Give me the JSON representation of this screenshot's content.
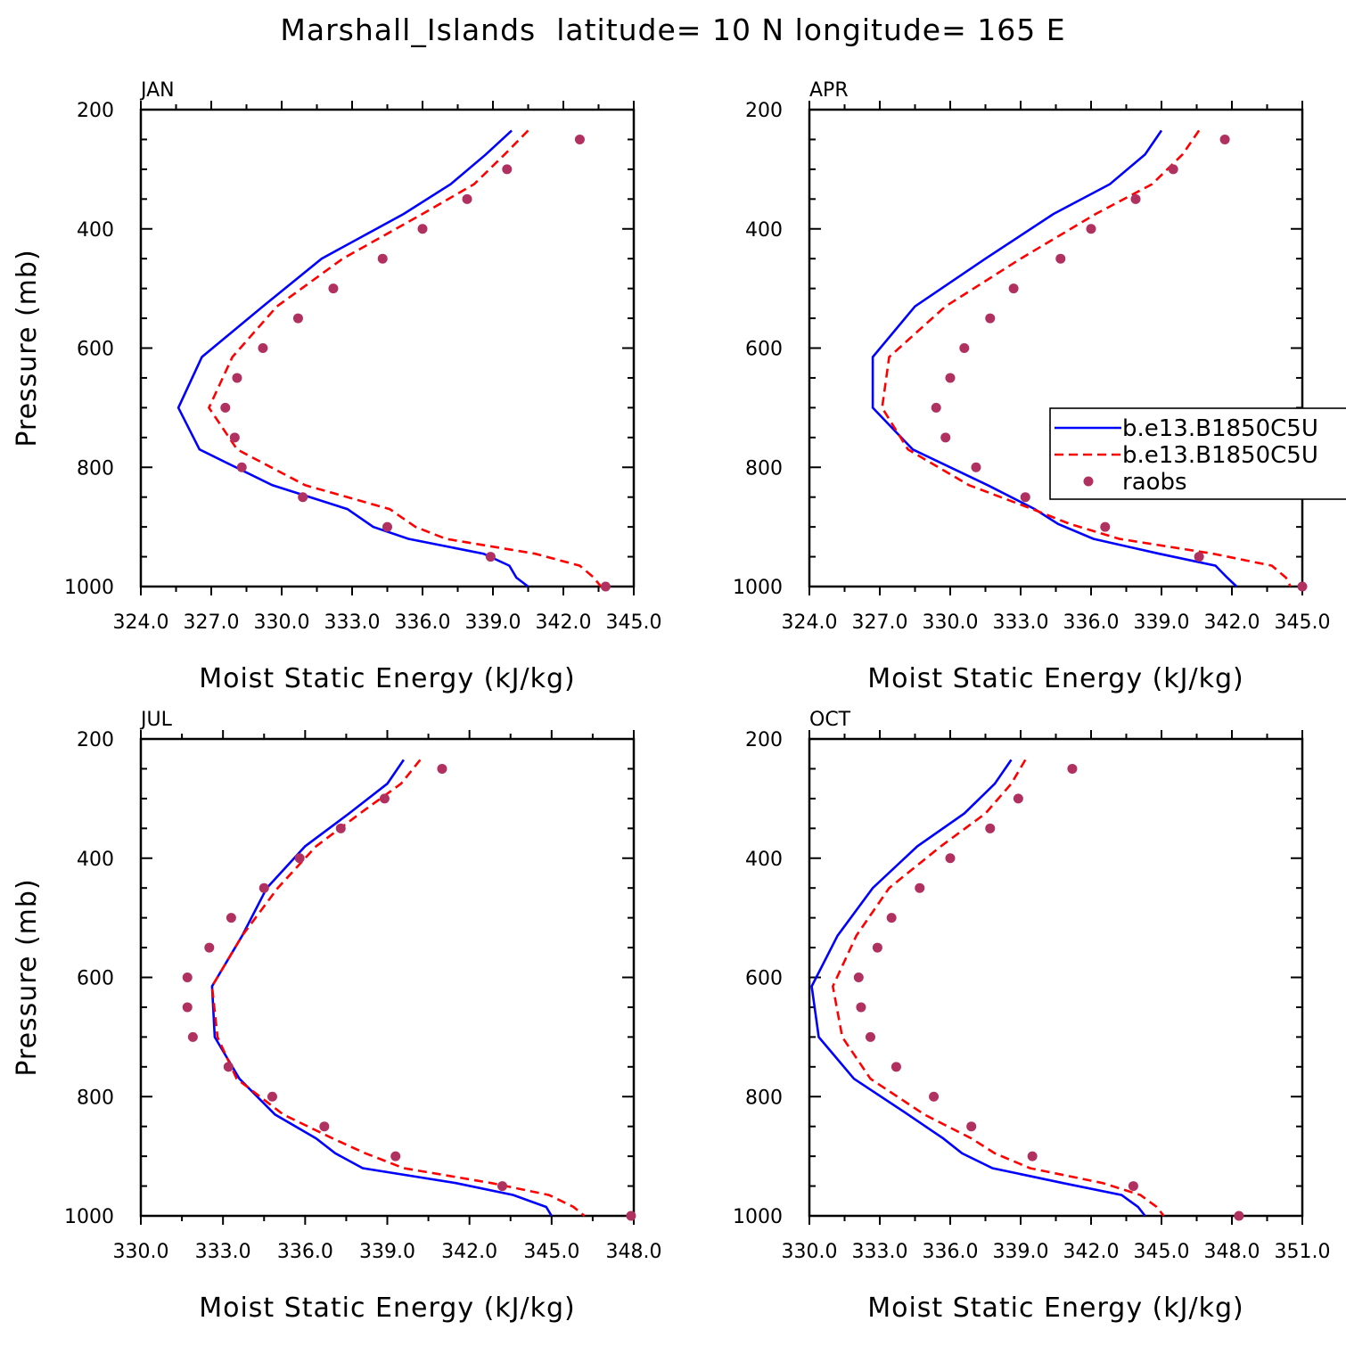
{
  "figure_title": "Marshall_Islands  latitude= 10 N longitude= 165 E",
  "colors": {
    "model1": "#0000ff",
    "model2": "#ff0000",
    "obs": "#b03060",
    "frame": "#000000"
  },
  "chart_data": [
    {
      "type": "line",
      "panel": "JAN",
      "title": "",
      "xlabel": "Moist Static Energy (kJ/kg)",
      "ylabel": "Pressure (mb)",
      "xlim": [
        324.0,
        345.0
      ],
      "xticks": [
        324.0,
        327.0,
        330.0,
        333.0,
        336.0,
        339.0,
        342.0,
        345.0
      ],
      "xtick_labels": [
        "324.0",
        "327.0",
        "330.0",
        "333.0",
        "336.0",
        "339.0",
        "342.0",
        "345.0"
      ],
      "ylim": [
        1000,
        200
      ],
      "yticks": [
        200,
        400,
        600,
        800,
        1000
      ],
      "ytick_labels": [
        "200",
        "400",
        "600",
        "800",
        "1000"
      ],
      "series": [
        {
          "name": "b.e13.B1850C5U",
          "style": "solid",
          "p": [
            235,
            275,
            325,
            375,
            450,
            530,
            615,
            700,
            770,
            830,
            870,
            900,
            920,
            945,
            965,
            985,
            1000
          ],
          "mse": [
            339.8,
            338.7,
            337.2,
            335.2,
            331.7,
            329.2,
            326.6,
            325.6,
            326.5,
            329.6,
            332.8,
            333.9,
            335.4,
            338.6,
            339.7,
            340.0,
            340.5
          ]
        },
        {
          "name": "b.e13.B1850C5U",
          "style": "dashed",
          "p": [
            235,
            275,
            325,
            375,
            450,
            530,
            615,
            700,
            770,
            830,
            870,
            900,
            920,
            945,
            965,
            985,
            1000
          ],
          "mse": [
            340.5,
            339.5,
            338.2,
            336.0,
            332.6,
            329.8,
            327.9,
            326.9,
            328.1,
            331.0,
            334.6,
            335.7,
            337.0,
            340.8,
            342.7,
            343.3,
            343.6
          ]
        }
      ],
      "obs": {
        "name": "raobs",
        "p": [
          250,
          300,
          350,
          400,
          450,
          500,
          550,
          600,
          650,
          700,
          750,
          800,
          850,
          900,
          950,
          1000
        ],
        "mse": [
          342.7,
          339.6,
          337.9,
          336.0,
          334.3,
          332.2,
          330.7,
          329.2,
          328.1,
          327.6,
          328.0,
          328.3,
          330.9,
          334.5,
          338.9,
          343.8
        ]
      }
    },
    {
      "type": "line",
      "panel": "APR",
      "title": "",
      "xlabel": "Moist Static Energy (kJ/kg)",
      "ylabel": "",
      "xlim": [
        324.0,
        345.0
      ],
      "xticks": [
        324.0,
        327.0,
        330.0,
        333.0,
        336.0,
        339.0,
        342.0,
        345.0
      ],
      "xtick_labels": [
        "324.0",
        "327.0",
        "330.0",
        "333.0",
        "336.0",
        "339.0",
        "342.0",
        "345.0"
      ],
      "ylim": [
        1000,
        200
      ],
      "yticks": [
        200,
        400,
        600,
        800,
        1000
      ],
      "ytick_labels": [
        "200",
        "400",
        "600",
        "800",
        "1000"
      ],
      "series": [
        {
          "name": "b.e13.B1850C5U",
          "style": "solid",
          "p": [
            235,
            275,
            325,
            375,
            450,
            530,
            615,
            700,
            770,
            830,
            870,
            895,
            920,
            945,
            965,
            985,
            1000
          ],
          "mse": [
            339.0,
            338.3,
            336.8,
            334.4,
            331.5,
            328.5,
            326.7,
            326.7,
            328.4,
            331.6,
            333.6,
            334.6,
            336.1,
            338.9,
            341.3,
            341.8,
            342.2
          ]
        },
        {
          "name": "b.e13.B1850C5U",
          "style": "dashed",
          "p": [
            235,
            275,
            325,
            375,
            450,
            530,
            615,
            700,
            770,
            830,
            870,
            895,
            920,
            945,
            965,
            985,
            1000
          ],
          "mse": [
            340.6,
            339.9,
            338.6,
            336.2,
            333.0,
            329.8,
            327.4,
            327.1,
            328.2,
            330.8,
            333.5,
            335.1,
            337.2,
            341.2,
            343.7,
            344.3,
            344.5
          ]
        }
      ],
      "obs": {
        "name": "raobs",
        "p": [
          250,
          300,
          350,
          400,
          450,
          500,
          550,
          600,
          650,
          700,
          750,
          800,
          850,
          900,
          950,
          1000
        ],
        "mse": [
          341.7,
          339.5,
          337.9,
          336.0,
          334.7,
          332.7,
          331.7,
          330.6,
          330.0,
          329.4,
          329.8,
          331.1,
          333.2,
          336.6,
          340.6,
          345.0
        ]
      }
    },
    {
      "type": "line",
      "panel": "JUL",
      "title": "",
      "xlabel": "Moist Static Energy (kJ/kg)",
      "ylabel": "Pressure (mb)",
      "xlim": [
        330.0,
        348.0
      ],
      "xticks": [
        330.0,
        333.0,
        336.0,
        339.0,
        342.0,
        345.0,
        348.0
      ],
      "xtick_labels": [
        "330.0",
        "333.0",
        "336.0",
        "339.0",
        "342.0",
        "345.0",
        "348.0"
      ],
      "ylim": [
        1000,
        200
      ],
      "yticks": [
        200,
        400,
        600,
        800,
        1000
      ],
      "ytick_labels": [
        "200",
        "400",
        "600",
        "800",
        "1000"
      ],
      "series": [
        {
          "name": "b.e13.B1850C5U",
          "style": "solid",
          "p": [
            235,
            275,
            325,
            380,
            450,
            530,
            615,
            700,
            770,
            830,
            870,
            895,
            920,
            945,
            965,
            985,
            1000
          ],
          "mse": [
            339.6,
            339.0,
            337.6,
            336.0,
            334.6,
            333.7,
            332.6,
            332.7,
            333.6,
            334.9,
            336.4,
            337.1,
            338.1,
            341.5,
            343.6,
            344.8,
            345.0
          ]
        },
        {
          "name": "b.e13.B1850C5U",
          "style": "dashed",
          "p": [
            235,
            275,
            325,
            380,
            450,
            530,
            615,
            700,
            770,
            830,
            870,
            895,
            920,
            945,
            965,
            985,
            1000
          ],
          "mse": [
            340.2,
            339.5,
            338.0,
            336.4,
            335.0,
            333.7,
            332.6,
            332.8,
            333.5,
            335.2,
            337.0,
            338.2,
            339.6,
            342.8,
            344.9,
            345.8,
            346.2
          ]
        }
      ],
      "obs": {
        "name": "raobs",
        "p": [
          250,
          300,
          350,
          400,
          450,
          500,
          550,
          600,
          650,
          700,
          750,
          800,
          850,
          900,
          950,
          1000
        ],
        "mse": [
          341.0,
          338.9,
          337.3,
          335.8,
          334.5,
          333.3,
          332.5,
          331.7,
          331.7,
          331.9,
          333.2,
          334.8,
          336.7,
          339.3,
          343.2,
          347.9
        ]
      }
    },
    {
      "type": "line",
      "panel": "OCT",
      "title": "",
      "xlabel": "Moist Static Energy (kJ/kg)",
      "ylabel": "",
      "xlim": [
        330.0,
        351.0
      ],
      "xticks": [
        330.0,
        333.0,
        336.0,
        339.0,
        342.0,
        345.0,
        348.0,
        351.0
      ],
      "xtick_labels": [
        "330.0",
        "333.0",
        "336.0",
        "339.0",
        "342.0",
        "345.0",
        "348.0",
        "351.0"
      ],
      "ylim": [
        1000,
        200
      ],
      "yticks": [
        200,
        400,
        600,
        800,
        1000
      ],
      "ytick_labels": [
        "200",
        "400",
        "600",
        "800",
        "1000"
      ],
      "series": [
        {
          "name": "b.e13.B1850C5U",
          "style": "solid",
          "p": [
            235,
            275,
            325,
            380,
            450,
            530,
            615,
            700,
            770,
            830,
            870,
            895,
            920,
            945,
            965,
            985,
            1000
          ],
          "mse": [
            338.6,
            337.9,
            336.6,
            334.6,
            332.7,
            331.2,
            330.1,
            330.4,
            331.9,
            334.2,
            335.7,
            336.5,
            337.8,
            340.8,
            343.3,
            344.0,
            344.3
          ]
        },
        {
          "name": "b.e13.B1850C5U",
          "style": "dashed",
          "p": [
            235,
            275,
            325,
            380,
            450,
            530,
            615,
            700,
            770,
            830,
            870,
            895,
            920,
            945,
            965,
            985,
            1000
          ],
          "mse": [
            339.2,
            338.6,
            337.5,
            335.6,
            333.4,
            332.0,
            331.0,
            331.4,
            332.6,
            334.9,
            336.9,
            337.9,
            339.4,
            342.5,
            344.1,
            344.8,
            345.1
          ]
        }
      ],
      "obs": {
        "name": "raobs",
        "p": [
          250,
          300,
          350,
          400,
          450,
          500,
          550,
          600,
          650,
          700,
          750,
          800,
          850,
          900,
          950,
          1000
        ],
        "mse": [
          341.2,
          338.9,
          337.7,
          336.0,
          334.7,
          333.5,
          332.9,
          332.1,
          332.2,
          332.6,
          333.7,
          335.3,
          336.9,
          339.5,
          343.8,
          348.3
        ]
      }
    }
  ],
  "legend": {
    "items": [
      {
        "label": "b.e13.B1850C5U",
        "style": "solid"
      },
      {
        "label": "b.e13.B1850C5U",
        "style": "dashed"
      },
      {
        "label": "raobs",
        "style": "marker"
      }
    ]
  }
}
